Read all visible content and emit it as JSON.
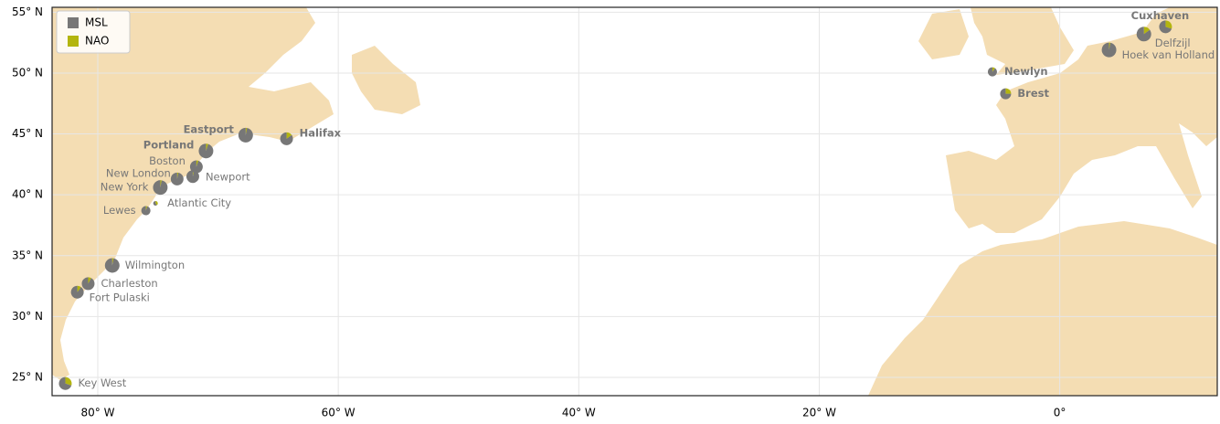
{
  "map": {
    "xlim": [
      -83.8,
      13.1
    ],
    "ylim": [
      23.5,
      55.4
    ],
    "xticks": [
      {
        "value": -80,
        "label": "80° W"
      },
      {
        "value": -60,
        "label": "60° W"
      },
      {
        "value": -40,
        "label": "40° W"
      },
      {
        "value": -20,
        "label": "20° W"
      },
      {
        "value": 0,
        "label": "0°"
      }
    ],
    "yticks": [
      {
        "value": 25,
        "label": "25° N"
      },
      {
        "value": 30,
        "label": "30° N"
      },
      {
        "value": 35,
        "label": "35° N"
      },
      {
        "value": 40,
        "label": "40° N"
      },
      {
        "value": 45,
        "label": "45° N"
      },
      {
        "value": 50,
        "label": "50° N"
      },
      {
        "value": 55,
        "label": "55° N"
      }
    ],
    "grid": true,
    "legend": {
      "position": "upper left",
      "entries": [
        {
          "name": "MSL",
          "color": "#777777"
        },
        {
          "name": "NAO",
          "color": "#b3b50f"
        }
      ]
    },
    "stations": [
      {
        "name": "Key West",
        "lon": -82.7,
        "lat": 24.5,
        "size": 7,
        "msl": 70,
        "nao": 30,
        "bold": false
      },
      {
        "name": "Fort Pulaski",
        "lon": -81.7,
        "lat": 32.0,
        "size": 7,
        "msl": 90,
        "nao": 10,
        "bold": false
      },
      {
        "name": "Charleston",
        "lon": -80.8,
        "lat": 32.7,
        "size": 7,
        "msl": 92,
        "nao": 8,
        "bold": false
      },
      {
        "name": "Wilmington",
        "lon": -78.8,
        "lat": 34.2,
        "size": 8,
        "msl": 97,
        "nao": 3,
        "bold": false
      },
      {
        "name": "Lewes",
        "lon": -76.0,
        "lat": 38.7,
        "size": 5,
        "msl": 95,
        "nao": 5,
        "bold": false
      },
      {
        "name": "Atlantic City",
        "lon": -75.2,
        "lat": 39.3,
        "size": 2.5,
        "msl": 60,
        "nao": 40,
        "bold": false
      },
      {
        "name": "New York",
        "lon": -74.8,
        "lat": 40.6,
        "size": 8,
        "msl": 97,
        "nao": 3,
        "bold": false
      },
      {
        "name": "New London",
        "lon": -73.4,
        "lat": 41.3,
        "size": 7,
        "msl": 97,
        "nao": 3,
        "bold": false
      },
      {
        "name": "Newport",
        "lon": -72.1,
        "lat": 41.5,
        "size": 7,
        "msl": 97,
        "nao": 3,
        "bold": false
      },
      {
        "name": "Boston",
        "lon": -71.8,
        "lat": 42.3,
        "size": 7,
        "msl": 95,
        "nao": 5,
        "bold": false
      },
      {
        "name": "Portland",
        "lon": -71.0,
        "lat": 43.6,
        "size": 8,
        "msl": 95,
        "nao": 5,
        "bold": true
      },
      {
        "name": "Eastport",
        "lon": -67.7,
        "lat": 44.9,
        "size": 8,
        "msl": 97,
        "nao": 3,
        "bold": true
      },
      {
        "name": "Halifax",
        "lon": -64.3,
        "lat": 44.6,
        "size": 7,
        "msl": 85,
        "nao": 15,
        "bold": true
      },
      {
        "name": "Newlyn",
        "lon": -5.6,
        "lat": 50.1,
        "size": 5,
        "msl": 90,
        "nao": 10,
        "bold": true
      },
      {
        "name": "Brest",
        "lon": -4.5,
        "lat": 48.3,
        "size": 6,
        "msl": 75,
        "nao": 25,
        "bold": true
      },
      {
        "name": "Hoek van Holland",
        "lon": 4.1,
        "lat": 51.9,
        "size": 8,
        "msl": 97,
        "nao": 3,
        "bold": false
      },
      {
        "name": "Delfzijl",
        "lon": 7.0,
        "lat": 53.2,
        "size": 8,
        "msl": 85,
        "nao": 15,
        "bold": false
      },
      {
        "name": "Cuxhaven",
        "lon": 8.8,
        "lat": 53.8,
        "size": 7,
        "msl": 70,
        "nao": 30,
        "bold": true
      }
    ]
  }
}
